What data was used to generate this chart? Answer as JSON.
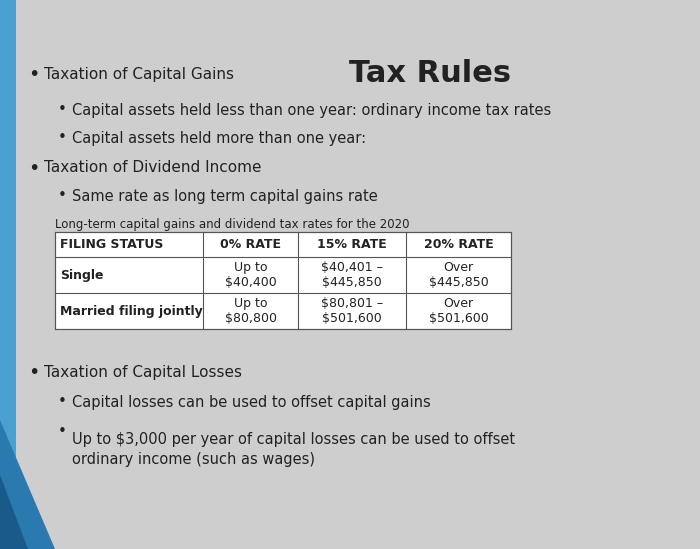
{
  "title": "Tax Rules",
  "bg_color": "#cecece",
  "bullet1_main": "Taxation of Capital Gains",
  "bullet1_sub1": "Capital assets held less than one year: ordinary income tax rates",
  "bullet1_sub2": "Capital assets held more than one year:",
  "bullet2_main": "Taxation of Dividend Income",
  "bullet2_sub1": "Same rate as long term capital gains rate",
  "table_caption": "Long-term capital gains and dividend tax rates for the 2020",
  "table_headers": [
    "FILING STATUS",
    "0% RATE",
    "15% RATE",
    "20% RATE"
  ],
  "table_row1": [
    "Single",
    "Up to\n$40,400",
    "$40,401 –\n$445,850",
    "Over\n$445,850"
  ],
  "table_row2": [
    "Married filing jointly",
    "Up to\n$80,800",
    "$80,801 –\n$501,600",
    "Over\n$501,600"
  ],
  "bullet3_main": "Taxation of Capital Losses",
  "bullet3_sub1": "Capital losses can be used to offset capital gains",
  "bullet3_sub2": "Up to $3,000 per year of capital losses can be used to offset\nordinary income (such as wages)",
  "accent_color": "#4aa0d0",
  "accent_dark": "#2a70a0",
  "text_color": "#222222",
  "table_border_color": "#555555"
}
